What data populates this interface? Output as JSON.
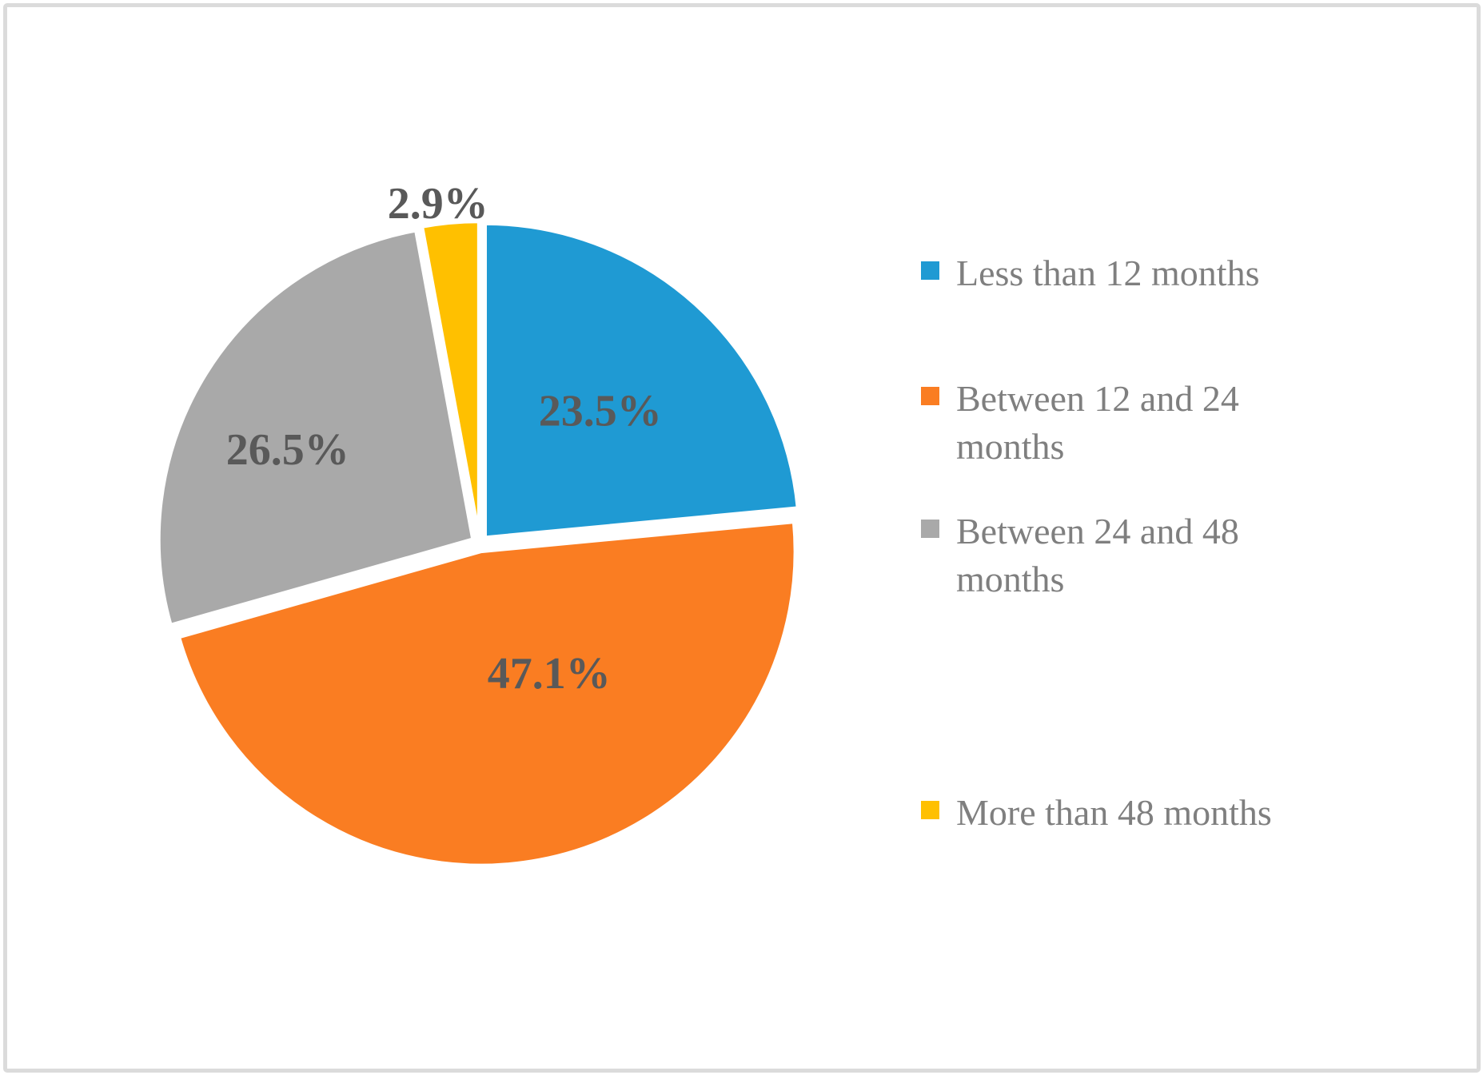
{
  "chart_data": {
    "type": "pie",
    "title": "",
    "categories": [
      "Less than 12 months",
      "Between 12 and 24 months",
      "Between 24 and 48 months",
      "More than 48 months"
    ],
    "values": [
      23.5,
      47.1,
      26.5,
      2.9
    ],
    "percent_labels": [
      "23.5%",
      "47.1%",
      "26.5%",
      "2.9%"
    ],
    "colors": [
      "#1F9AD3",
      "#FA7D22",
      "#A9A9A9",
      "#FFC000"
    ],
    "slice_border_color": "#FFFFFF",
    "data_label_color": "#595959",
    "background": "#FFFFFF",
    "frame_border_color": "#DBDBDB",
    "legend": {
      "position": "right",
      "text_color": "#7F7F7F",
      "items": [
        {
          "label": "Less than 12 months",
          "lines": [
            "Less than 12 months"
          ],
          "color": "#1F9AD3"
        },
        {
          "label": "Between 12 and 24 months",
          "lines": [
            "Between 12 and 24",
            "months"
          ],
          "color": "#FA7D22"
        },
        {
          "label": "Between 24 and 48 months",
          "lines": [
            "Between 24 and 48",
            "months"
          ],
          "color": "#A9A9A9"
        },
        {
          "label": "More than 48 months",
          "lines": [
            "More than 48 months"
          ],
          "color": "#FFC000"
        }
      ]
    }
  }
}
